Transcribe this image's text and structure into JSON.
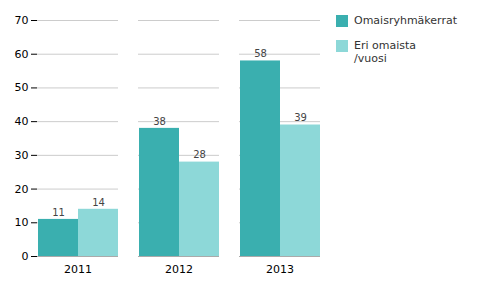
{
  "chart_data": {
    "type": "bar",
    "categories": [
      "2011",
      "2012",
      "2013"
    ],
    "series": [
      {
        "name": "Omaisryhmäkerrat",
        "color": "#3aafaf",
        "values": [
          11,
          38,
          58
        ]
      },
      {
        "name": "Eri omaista\n/vuosi",
        "color": "#8dd8d8",
        "values": [
          14,
          28,
          39
        ]
      }
    ],
    "ylim": [
      0,
      70
    ],
    "yticks": [
      0,
      10,
      20,
      30,
      40,
      50,
      60,
      70
    ],
    "grid": true,
    "data_labels": true,
    "legend": "right"
  }
}
